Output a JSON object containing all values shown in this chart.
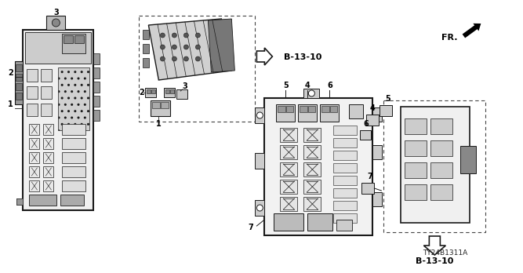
{
  "background_color": "#ffffff",
  "text_color": "#000000",
  "line_color": "#1a1a1a",
  "dashed_color": "#444444",
  "gray_fill": "#888888",
  "light_gray": "#bbbbbb",
  "mid_gray": "#999999",
  "dark_gray": "#555555",
  "ref_label_mid": "B-13-10",
  "ref_label_right": "B-13-10",
  "fr_label": "FR.",
  "bottom_label": "TY24B1311A",
  "label1": "1",
  "label2": "2",
  "label3": "3",
  "label4": "4",
  "label5": "5",
  "label6": "6",
  "label7": "7"
}
